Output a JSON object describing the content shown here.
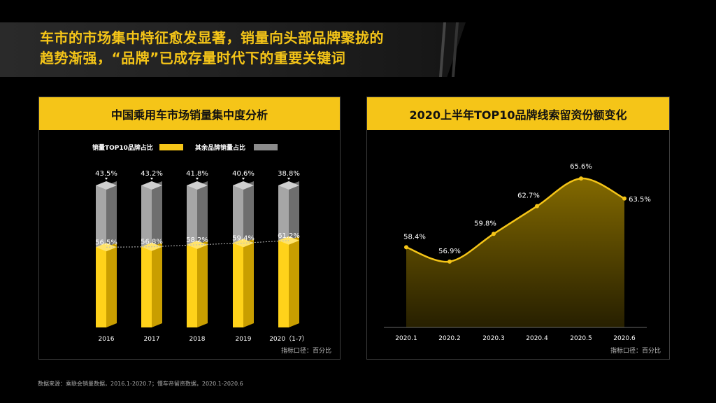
{
  "headline": {
    "line1": "车市的市场集中特征愈发显著，销量向头部品牌聚拢的",
    "line2": "趋势渐强，“品牌”已成存量时代下的重要关键词"
  },
  "colors": {
    "accent": "#f5c518",
    "grey_bar": "#8c8c8c",
    "background": "#000000"
  },
  "left_panel": {
    "title": "中国乘用车市场销量集中度分析",
    "unit_note": "指标口径：百分比"
  },
  "right_panel": {
    "title": "2020上半年TOP10品牌线索留资份额变化",
    "unit_note": "指标口径：百分比"
  },
  "footnote": "数据来源：乘联会销量数据，2016.1-2020.7；懂车帝留资数据，2020.1-2020.6",
  "chart_data": [
    {
      "type": "bar",
      "stacked": true,
      "title": "中国乘用车市场销量集中度分析",
      "categories": [
        "2016",
        "2017",
        "2018",
        "2019",
        "2020（1-7）"
      ],
      "series": [
        {
          "name": "销量TOP10品牌占比",
          "values": [
            56.5,
            56.8,
            58.2,
            59.4,
            61.2
          ],
          "labels": [
            "56.5%",
            "56.8%",
            "58.2%",
            "59.4%",
            "61.2%"
          ],
          "color": "#f5c518"
        },
        {
          "name": "其余品牌销量占比",
          "values": [
            43.5,
            43.2,
            41.8,
            40.6,
            38.8
          ],
          "labels": [
            "43.5%",
            "43.2%",
            "41.8%",
            "40.6%",
            "38.8%"
          ],
          "color": "#8c8c8c"
        }
      ],
      "ylim": [
        0,
        100
      ],
      "legend": "top-left",
      "grid": false
    },
    {
      "type": "area",
      "title": "2020上半年TOP10品牌线索留资份额变化",
      "x": [
        "2020.1",
        "2020.2",
        "2020.3",
        "2020.4",
        "2020.5",
        "2020.6"
      ],
      "values": [
        58.4,
        56.9,
        59.8,
        62.7,
        65.6,
        63.5
      ],
      "labels": [
        "58.4%",
        "56.9%",
        "59.8%",
        "62.7%",
        "65.6%",
        "63.5%"
      ],
      "color": "#f5c518",
      "ylim": [
        50,
        67
      ],
      "grid": false
    }
  ]
}
